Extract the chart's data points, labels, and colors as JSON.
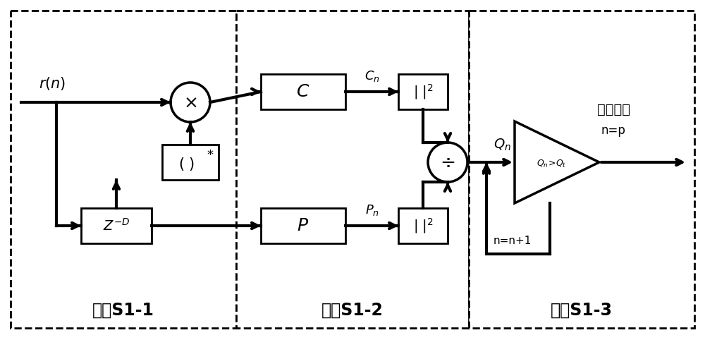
{
  "bg_color": "#ffffff",
  "step_labels": [
    "步骤S1-1",
    "步骤S1-2",
    "步骤S1-3"
  ],
  "chitake_line1": "此时取値",
  "chitake_line2": "n=p",
  "n_feedback": "n=n+1"
}
